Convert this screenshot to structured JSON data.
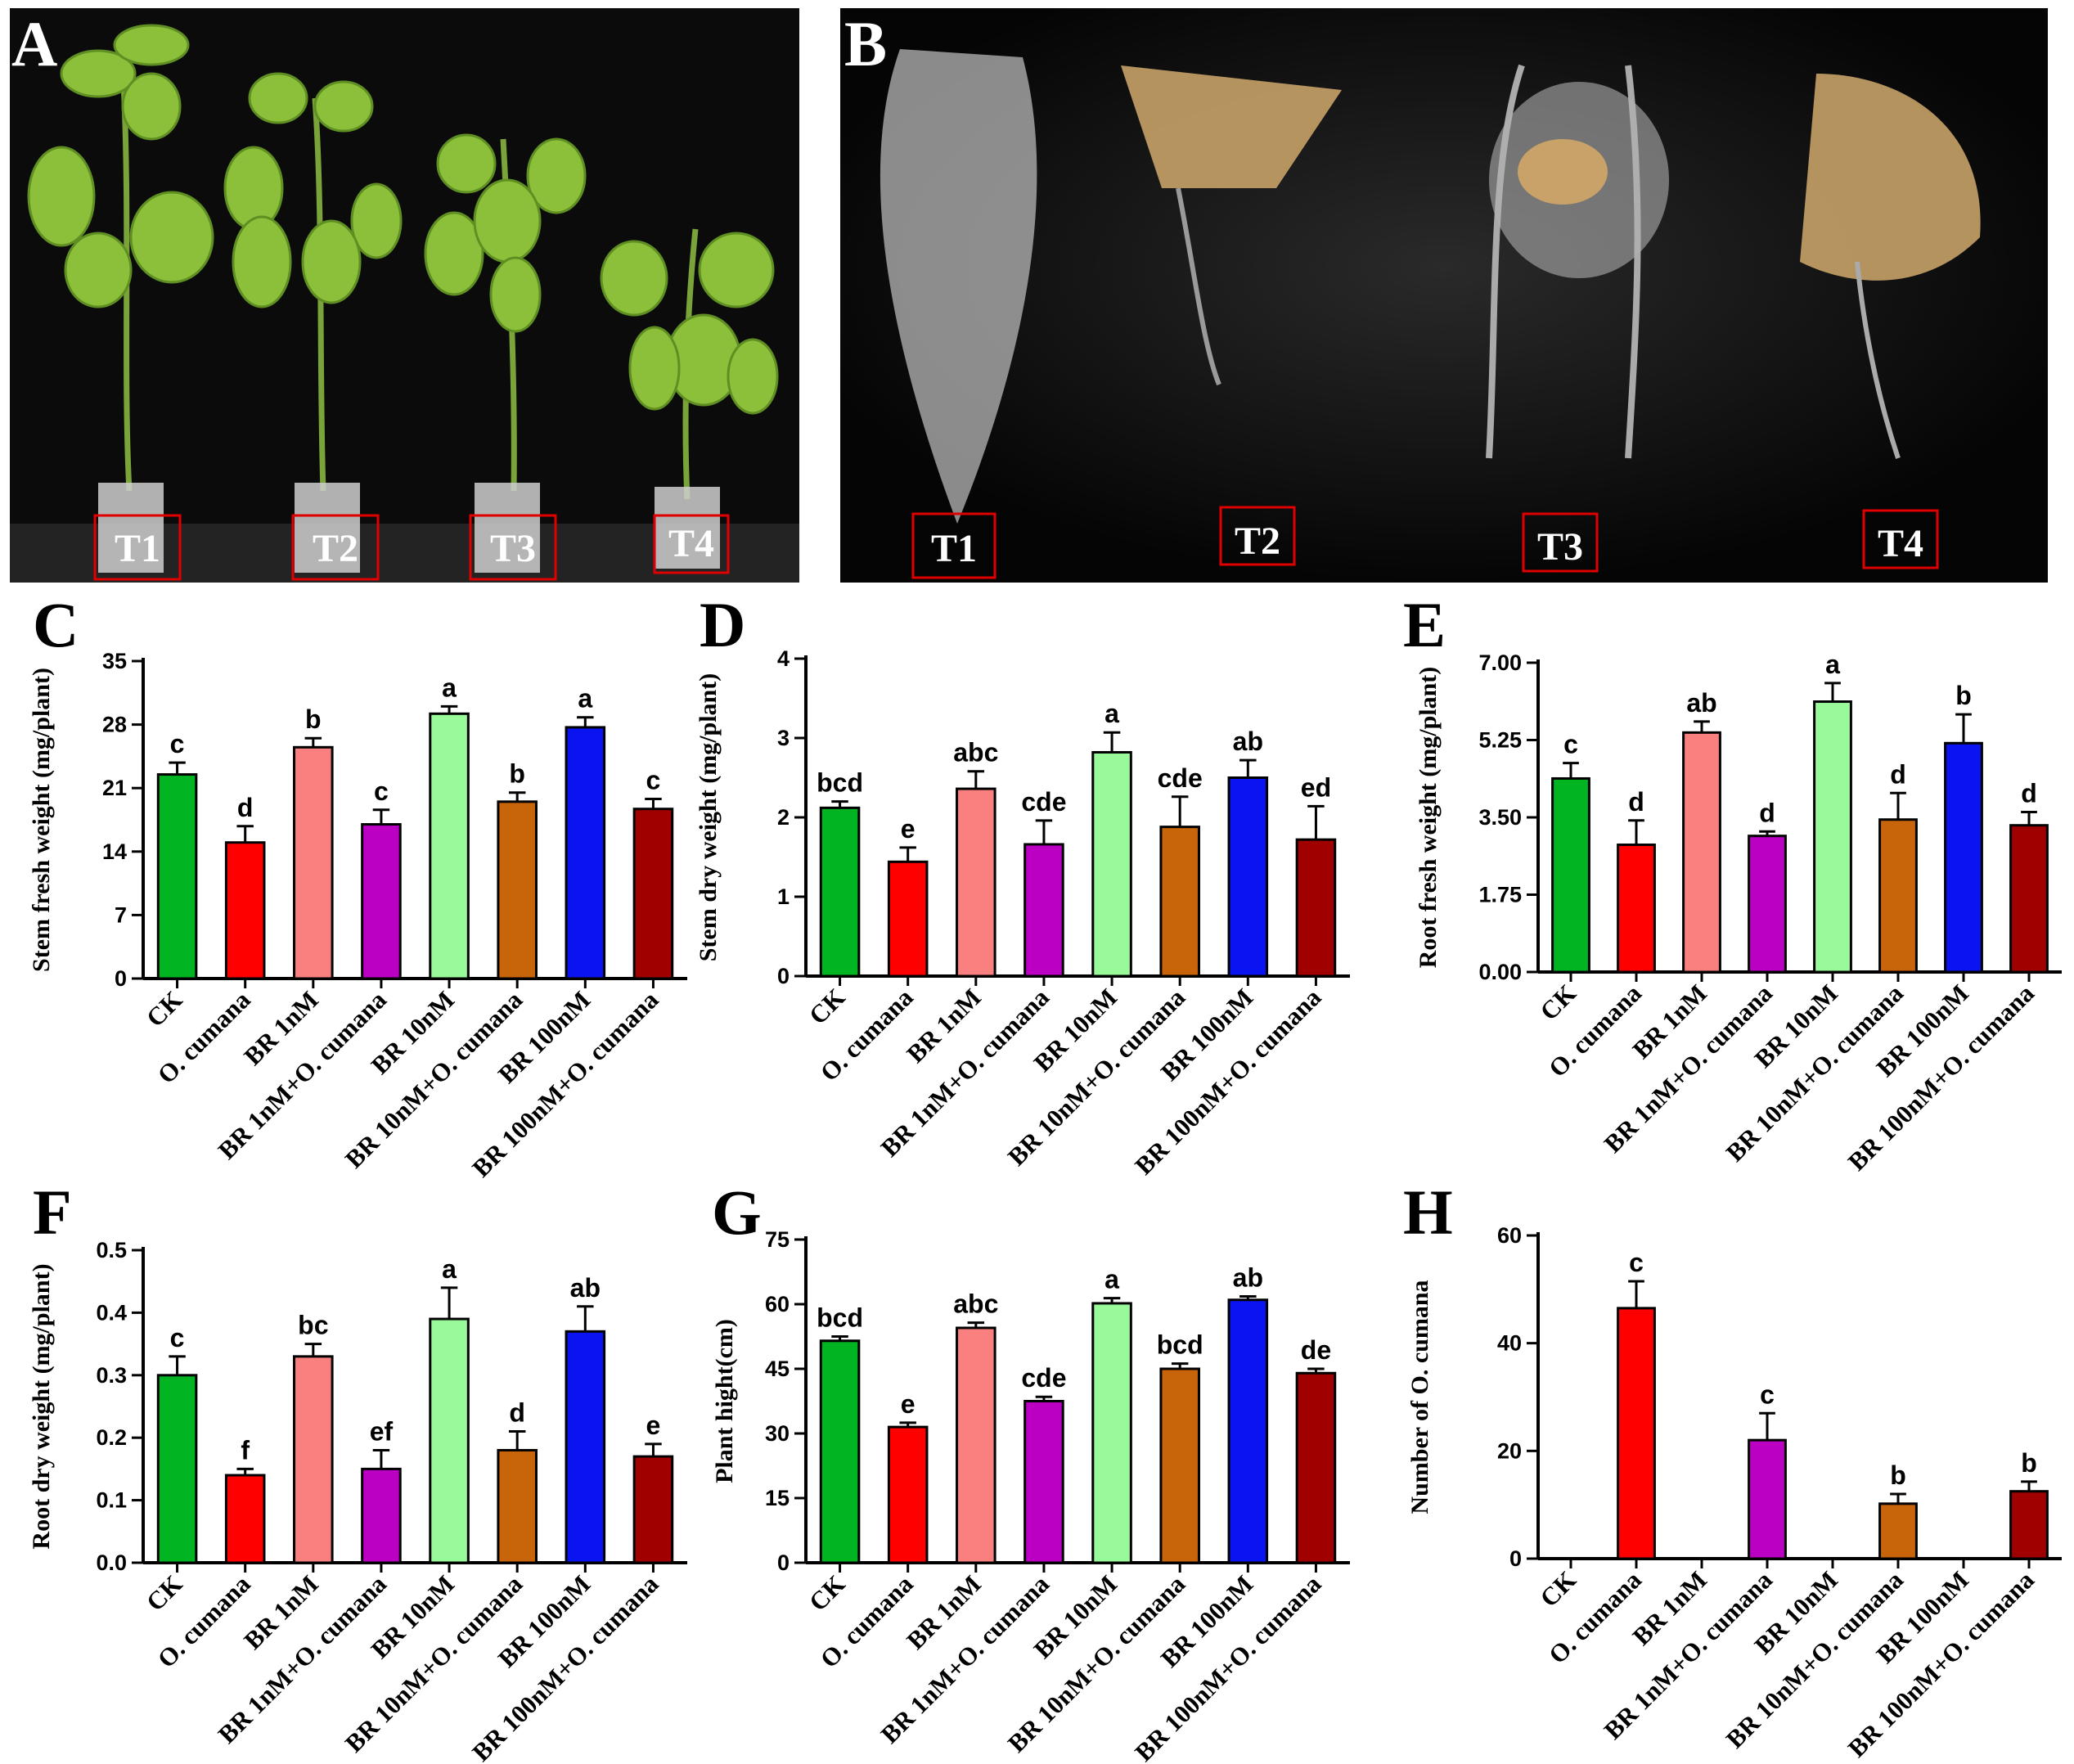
{
  "photos": [
    {
      "letter": "A",
      "labels": [
        "T1",
        "T2",
        "T3",
        "T4"
      ]
    },
    {
      "letter": "B",
      "labels": [
        "T1",
        "T2",
        "T3",
        "T4"
      ]
    }
  ],
  "colors": [
    "#00b521",
    "#ff0000",
    "#fa8080",
    "#bb00c4",
    "#99fa99",
    "#c8640a",
    "#0a14f0",
    "#a00000"
  ],
  "chart_data": [
    {
      "letter": "C",
      "type": "bar",
      "categories": [
        "CK",
        "O. cumana",
        "BR 1nM",
        "BR 1nM+O. cumana",
        "BR 10nM",
        "BR 10nM+O. cumana",
        "BR 100nM",
        "BR 100nM+O. cumana"
      ],
      "values": [
        22.5,
        15.0,
        25.5,
        17.0,
        29.2,
        19.5,
        27.7,
        18.7
      ],
      "errors": [
        1.3,
        1.8,
        1.0,
        1.6,
        0.8,
        1.0,
        1.1,
        1.1
      ],
      "sig": [
        "c",
        "d",
        "b",
        "c",
        "a",
        "b",
        "a",
        "c"
      ],
      "ylabel": "Stem fresh weight (mg/plant)",
      "ylim": [
        0,
        35
      ],
      "ticks": [
        "0",
        "7",
        "14",
        "21",
        "28",
        "35"
      ]
    },
    {
      "letter": "D",
      "type": "bar",
      "categories": [
        "CK",
        "O. cumana",
        "BR 1nM",
        "BR 1nM+O. cumana",
        "BR 10nM",
        "BR 10nM+O. cumana",
        "BR 100nM",
        "BR 100nM+O. cumana"
      ],
      "values": [
        2.12,
        1.44,
        2.36,
        1.66,
        2.82,
        1.88,
        2.5,
        1.72
      ],
      "errors": [
        0.08,
        0.18,
        0.22,
        0.3,
        0.25,
        0.38,
        0.22,
        0.42
      ],
      "sig": [
        "bcd",
        "e",
        "abc",
        "cde",
        "a",
        "cde",
        "ab",
        "ed"
      ],
      "ylabel": "Stem dry weight (mg/plant)",
      "ylim": [
        0,
        4
      ],
      "ticks": [
        "0",
        "1",
        "2",
        "3",
        "4"
      ]
    },
    {
      "letter": "E",
      "type": "bar",
      "categories": [
        "CK",
        "O. cumana",
        "BR 1nM",
        "BR 1nM+O. cumana",
        "BR 10nM",
        "BR 10nM+O. cumana",
        "BR 100nM",
        "BR 100nM+O. cumana"
      ],
      "values": [
        4.38,
        2.88,
        5.42,
        3.08,
        6.12,
        3.45,
        5.18,
        3.32
      ],
      "errors": [
        0.35,
        0.55,
        0.25,
        0.1,
        0.42,
        0.6,
        0.65,
        0.3
      ],
      "sig": [
        "c",
        "d",
        "ab",
        "d",
        "a",
        "d",
        "b",
        "d"
      ],
      "ylabel": "Root fresh weight (mg/plant)",
      "ylim": [
        0,
        7
      ],
      "ticks": [
        "0.00",
        "1.75",
        "3.50",
        "5.25",
        "7.00"
      ]
    },
    {
      "letter": "F",
      "type": "bar",
      "categories": [
        "CK",
        "O. cumana",
        "BR 1nM",
        "BR 1nM+O. cumana",
        "BR 10nM",
        "BR 10nM+O. cumana",
        "BR 100nM",
        "BR 100nM+O. cumana"
      ],
      "values": [
        0.3,
        0.14,
        0.33,
        0.15,
        0.39,
        0.18,
        0.37,
        0.17
      ],
      "errors": [
        0.03,
        0.01,
        0.02,
        0.03,
        0.05,
        0.03,
        0.04,
        0.02
      ],
      "sig": [
        "c",
        "f",
        "bc",
        "ef",
        "a",
        "d",
        "ab",
        "e"
      ],
      "ylabel": "Root dry weight (mg/plant)",
      "ylim": [
        0,
        0.5
      ],
      "ticks": [
        "0.0",
        "0.1",
        "0.2",
        "0.3",
        "0.4",
        "0.5"
      ]
    },
    {
      "letter": "G",
      "type": "bar",
      "categories": [
        "CK",
        "O. cumana",
        "BR 1nM",
        "BR 1nM+O. cumana",
        "BR 10nM",
        "BR 10nM+O. cumana",
        "BR 100nM",
        "BR 100nM+O. cumana"
      ],
      "values": [
        51.5,
        31.5,
        54.5,
        37.5,
        60.2,
        45.0,
        61.0,
        44.0
      ],
      "errors": [
        1.0,
        1.0,
        1.2,
        1.0,
        1.2,
        1.2,
        0.8,
        1.0
      ],
      "sig": [
        "bcd",
        "e",
        "abc",
        "cde",
        "a",
        "bcd",
        "ab",
        "de"
      ],
      "ylabel": "Plant hight(cm)",
      "ylim": [
        0,
        75
      ],
      "ticks": [
        "0",
        "15",
        "30",
        "45",
        "60",
        "75"
      ]
    },
    {
      "letter": "H",
      "type": "bar",
      "categories": [
        "CK",
        "O. cumana",
        "BR 1nM",
        "BR 1nM+O. cumana",
        "BR 10nM",
        "BR 10nM+O. cumana",
        "BR 100nM",
        "BR 100nM+O. cumana"
      ],
      "values": [
        0,
        46.5,
        0,
        22.0,
        0,
        10.2,
        0,
        12.5
      ],
      "errors": [
        0,
        5.0,
        0,
        5.0,
        0,
        1.8,
        0,
        1.8
      ],
      "sig": [
        "",
        "c",
        "",
        "c",
        "",
        "b",
        "",
        "b"
      ],
      "ylabel": "Number of O. cumana",
      "ylim": [
        0,
        60
      ],
      "ticks": [
        "0",
        "20",
        "40",
        "60"
      ]
    }
  ]
}
